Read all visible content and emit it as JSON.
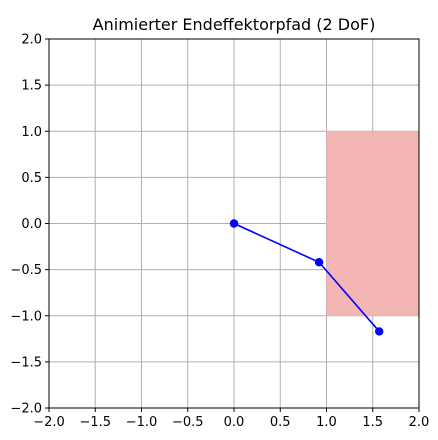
{
  "chart_data": {
    "type": "line",
    "title": "Animierter Endeffektorpfad (2 DoF)",
    "xlabel": "",
    "ylabel": "",
    "xlim": [
      -2.0,
      2.0
    ],
    "ylim": [
      -2.0,
      2.0
    ],
    "grid": true,
    "x_ticks": [
      "−2.0",
      "−1.5",
      "−1.0",
      "−0.5",
      "0.0",
      "0.5",
      "1.0",
      "1.5",
      "2.0"
    ],
    "y_ticks": [
      "−2.0",
      "−1.5",
      "−1.0",
      "−0.5",
      "0.0",
      "0.5",
      "1.0",
      "1.5",
      "2.0"
    ],
    "x_tick_values": [
      -2.0,
      -1.5,
      -1.0,
      -0.5,
      0.0,
      0.5,
      1.0,
      1.5,
      2.0
    ],
    "y_tick_values": [
      -2.0,
      -1.5,
      -1.0,
      -0.5,
      0.0,
      0.5,
      1.0,
      1.5,
      2.0
    ],
    "region": {
      "x": [
        1.0,
        2.0
      ],
      "y": [
        -1.0,
        1.0
      ],
      "color": "#f4b5b5"
    },
    "series": [
      {
        "color": "#0000ff",
        "x": [
          0.0,
          0.92,
          1.57
        ],
        "y": [
          0.0,
          -0.42,
          -1.17
        ]
      }
    ]
  }
}
